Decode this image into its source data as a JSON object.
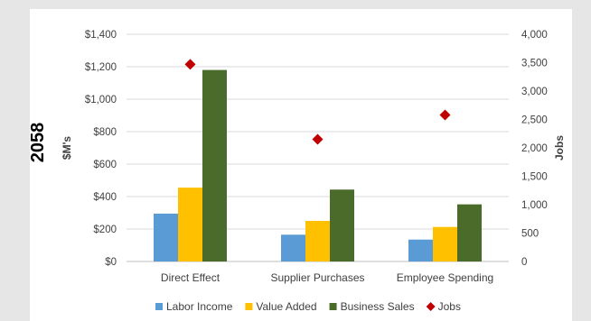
{
  "side_label": "2058",
  "colors": {
    "labor_income": "#5b9bd5",
    "value_added": "#ffc000",
    "business_sales": "#4a6b2a",
    "jobs": "#c00000",
    "gridline": "#d9d9d9",
    "axis_text": "#404040"
  },
  "chart_data": {
    "type": "bar",
    "categories": [
      "Direct Effect",
      "Supplier Purchases",
      "Employee Spending"
    ],
    "series": [
      {
        "name": "Labor Income",
        "axis": "left",
        "color": "#5b9bd5",
        "values": [
          295,
          165,
          135
        ]
      },
      {
        "name": "Value Added",
        "axis": "left",
        "color": "#ffc000",
        "values": [
          455,
          250,
          213
        ]
      },
      {
        "name": "Business Sales",
        "axis": "left",
        "color": "#4a6b2a",
        "values": [
          1180,
          443,
          352
        ]
      },
      {
        "name": "Jobs",
        "axis": "right",
        "type": "scatter",
        "marker": "diamond",
        "color": "#c00000",
        "values": [
          3470,
          2150,
          2580
        ]
      }
    ],
    "ylabel": "$M's",
    "y2label": "Jobs",
    "ylim": [
      0,
      1400
    ],
    "y2lim": [
      0,
      4000
    ],
    "yticks": [
      "$0",
      "$200",
      "$400",
      "$600",
      "$800",
      "$1,000",
      "$1,200",
      "$1,400"
    ],
    "y2ticks": [
      "0",
      "500",
      "1,000",
      "1,500",
      "2,000",
      "2,500",
      "3,000",
      "3,500",
      "4,000"
    ],
    "grid": true,
    "legend": "bottom"
  }
}
